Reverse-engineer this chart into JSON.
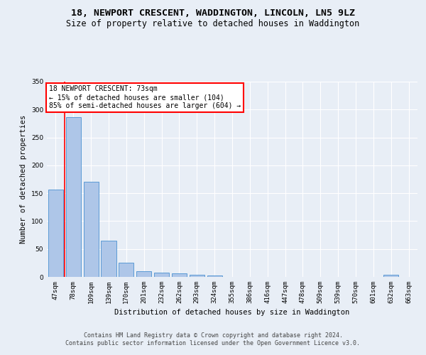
{
  "title1": "18, NEWPORT CRESCENT, WADDINGTON, LINCOLN, LN5 9LZ",
  "title2": "Size of property relative to detached houses in Waddington",
  "xlabel": "Distribution of detached houses by size in Waddington",
  "ylabel": "Number of detached properties",
  "footer1": "Contains HM Land Registry data © Crown copyright and database right 2024.",
  "footer2": "Contains public sector information licensed under the Open Government Licence v3.0.",
  "annotation_line1": "18 NEWPORT CRESCENT: 73sqm",
  "annotation_line2": "← 15% of detached houses are smaller (104)",
  "annotation_line3": "85% of semi-detached houses are larger (604) →",
  "bar_labels": [
    "47sqm",
    "78sqm",
    "109sqm",
    "139sqm",
    "170sqm",
    "201sqm",
    "232sqm",
    "262sqm",
    "293sqm",
    "324sqm",
    "355sqm",
    "386sqm",
    "416sqm",
    "447sqm",
    "478sqm",
    "509sqm",
    "539sqm",
    "570sqm",
    "601sqm",
    "632sqm",
    "663sqm"
  ],
  "bar_values": [
    156,
    287,
    170,
    65,
    25,
    10,
    8,
    6,
    4,
    3,
    0,
    0,
    0,
    0,
    0,
    0,
    0,
    0,
    0,
    4,
    0
  ],
  "bar_color": "#aec6e8",
  "bar_edge_color": "#5b9bd5",
  "red_line_x": 0.5,
  "ylim": [
    0,
    350
  ],
  "yticks": [
    0,
    50,
    100,
    150,
    200,
    250,
    300,
    350
  ],
  "bg_color": "#e8eef6",
  "grid_color": "#ffffff",
  "title_fontsize": 9.5,
  "subtitle_fontsize": 8.5,
  "annotation_fontsize": 7,
  "axis_fontsize": 7.5,
  "tick_fontsize": 6.5,
  "footer_fontsize": 6
}
